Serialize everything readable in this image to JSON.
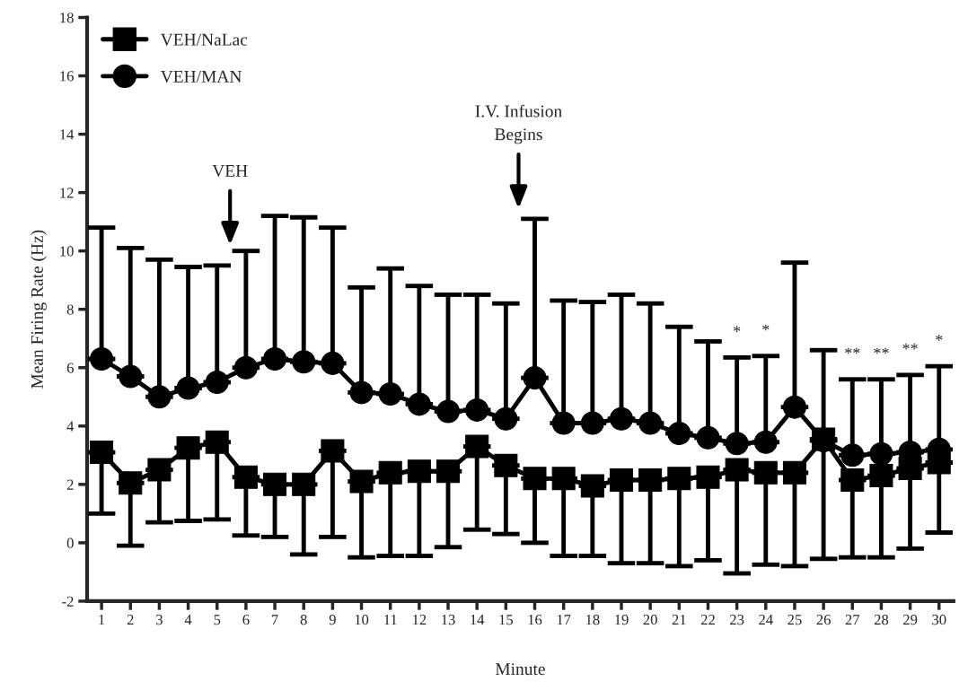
{
  "chart_data": {
    "type": "line",
    "xlabel": "Minute",
    "ylabel": "Mean Firing Rate (Hz)",
    "x": [
      1,
      2,
      3,
      4,
      5,
      6,
      7,
      8,
      9,
      10,
      11,
      12,
      13,
      14,
      15,
      16,
      17,
      18,
      19,
      20,
      21,
      22,
      23,
      24,
      25,
      26,
      27,
      28,
      29,
      30
    ],
    "xlim": [
      0.5,
      30.5
    ],
    "xticks": [
      1,
      2,
      3,
      4,
      5,
      6,
      7,
      8,
      9,
      10,
      11,
      12,
      13,
      14,
      15,
      16,
      17,
      18,
      19,
      20,
      21,
      22,
      23,
      24,
      25,
      26,
      27,
      28,
      29,
      30
    ],
    "ylim": [
      -2,
      18
    ],
    "yticks": [
      -2,
      0,
      2,
      4,
      6,
      8,
      10,
      12,
      14,
      16,
      18
    ],
    "grid": false,
    "legend": "top left",
    "line_style": "solid",
    "series": [
      {
        "name": "VEH/NaLac",
        "color": "#000000",
        "marker": "square",
        "values": [
          3.1,
          2.05,
          2.5,
          3.25,
          3.45,
          2.25,
          2.0,
          2.0,
          3.15,
          2.1,
          2.4,
          2.45,
          2.45,
          3.3,
          2.65,
          2.2,
          2.2,
          1.95,
          2.15,
          2.15,
          2.2,
          2.25,
          2.5,
          2.4,
          2.4,
          3.55,
          2.15,
          2.3,
          2.55,
          2.75
        ],
        "errors": [
          [
            1.0,
            3.1
          ],
          [
            -0.1,
            2.05
          ],
          [
            0.7,
            2.5
          ],
          [
            0.75,
            3.25
          ],
          [
            0.8,
            3.45
          ],
          [
            0.25,
            2.25
          ],
          [
            0.2,
            2.0
          ],
          [
            -0.4,
            2.0
          ],
          [
            0.2,
            3.15
          ],
          [
            -0.5,
            2.1
          ],
          [
            -0.45,
            2.4
          ],
          [
            -0.45,
            2.45
          ],
          [
            -0.15,
            2.45
          ],
          [
            0.45,
            3.3
          ],
          [
            0.3,
            2.65
          ],
          [
            0.0,
            2.2
          ],
          [
            -0.45,
            2.2
          ],
          [
            -0.45,
            1.95
          ],
          [
            -0.7,
            2.15
          ],
          [
            -0.7,
            2.15
          ],
          [
            -0.8,
            2.2
          ],
          [
            -0.6,
            2.25
          ],
          [
            -1.05,
            2.5
          ],
          [
            -0.75,
            2.4
          ],
          [
            -0.8,
            2.4
          ],
          [
            -0.55,
            3.55
          ],
          [
            -0.5,
            2.15
          ],
          [
            -0.5,
            2.3
          ],
          [
            -0.2,
            2.55
          ],
          [
            0.35,
            2.75
          ]
        ]
      },
      {
        "name": "VEH/MAN",
        "color": "#000000",
        "marker": "circle",
        "values": [
          6.3,
          5.7,
          5.0,
          5.3,
          5.5,
          6.0,
          6.3,
          6.2,
          6.15,
          5.15,
          5.1,
          4.75,
          4.5,
          4.55,
          4.25,
          5.65,
          4.1,
          4.1,
          4.25,
          4.1,
          3.75,
          3.6,
          3.4,
          3.45,
          4.65,
          3.5,
          3.0,
          3.05,
          3.1,
          3.2
        ],
        "errors": [
          [
            6.3,
            10.8
          ],
          [
            5.7,
            10.1
          ],
          [
            5.0,
            9.7
          ],
          [
            5.3,
            9.45
          ],
          [
            5.5,
            9.5
          ],
          [
            6.0,
            10.0
          ],
          [
            6.3,
            11.2
          ],
          [
            6.2,
            11.15
          ],
          [
            6.15,
            10.8
          ],
          [
            5.15,
            8.75
          ],
          [
            5.1,
            9.4
          ],
          [
            4.75,
            8.8
          ],
          [
            4.5,
            8.5
          ],
          [
            4.55,
            8.5
          ],
          [
            4.25,
            8.2
          ],
          [
            5.65,
            11.1
          ],
          [
            4.1,
            8.3
          ],
          [
            4.1,
            8.25
          ],
          [
            4.25,
            8.5
          ],
          [
            4.1,
            8.2
          ],
          [
            3.75,
            7.4
          ],
          [
            3.6,
            6.9
          ],
          [
            3.4,
            6.35
          ],
          [
            3.45,
            6.4
          ],
          [
            4.65,
            9.6
          ],
          [
            3.5,
            6.6
          ],
          [
            3.0,
            5.6
          ],
          [
            3.05,
            5.6
          ],
          [
            3.1,
            5.75
          ],
          [
            3.2,
            6.05
          ]
        ]
      }
    ],
    "annotations": [
      "VEH",
      "I.V. Infusion\nBegins",
      {
        "text": "*",
        "x": 23,
        "y": 6.35
      },
      {
        "text": "*",
        "x": 24,
        "y": 6.4
      },
      {
        "text": "**",
        "x": 27,
        "y": 5.6
      },
      {
        "text": "**",
        "x": 28,
        "y": 5.6
      },
      {
        "text": "**",
        "x": 29,
        "y": 5.75
      },
      {
        "text": "*",
        "x": 30,
        "y": 6.05
      }
    ]
  }
}
